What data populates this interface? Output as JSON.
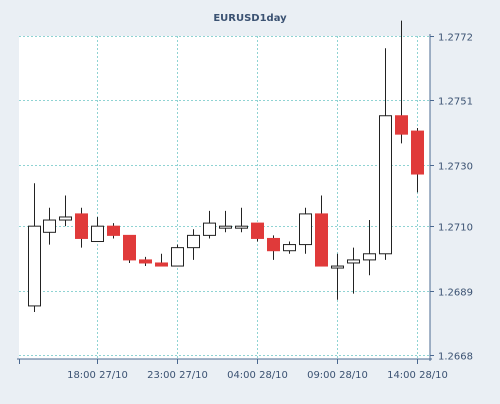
{
  "chart_data": {
    "type": "candlestick",
    "title": "EURUSD1day",
    "y_ticks": [
      1.2668,
      1.2689,
      1.271,
      1.273,
      1.2751,
      1.2772
    ],
    "ylim": [
      1.2668,
      1.2772
    ],
    "x_ticks": [
      {
        "label": "18:00 27/10",
        "index": 4
      },
      {
        "label": "23:00 27/10",
        "index": 9
      },
      {
        "label": "04:00 28/10",
        "index": 14
      },
      {
        "label": "09:00 28/10",
        "index": 19
      },
      {
        "label": "14:00 28/10",
        "index": 24
      }
    ],
    "candles": [
      {
        "open": 1.2684,
        "high": 1.2724,
        "low": 1.2682,
        "close": 1.271
      },
      {
        "open": 1.2708,
        "high": 1.2716,
        "low": 1.2704,
        "close": 1.2712
      },
      {
        "open": 1.2712,
        "high": 1.272,
        "low": 1.271,
        "close": 1.2713
      },
      {
        "open": 1.2714,
        "high": 1.2716,
        "low": 1.2703,
        "close": 1.2706
      },
      {
        "open": 1.2705,
        "high": 1.2713,
        "low": 1.2705,
        "close": 1.271
      },
      {
        "open": 1.271,
        "high": 1.2711,
        "low": 1.2706,
        "close": 1.2707
      },
      {
        "open": 1.2707,
        "high": 1.2707,
        "low": 1.2698,
        "close": 1.2699
      },
      {
        "open": 1.2699,
        "high": 1.27,
        "low": 1.2697,
        "close": 1.2698
      },
      {
        "open": 1.2698,
        "high": 1.2701,
        "low": 1.2697,
        "close": 1.2697
      },
      {
        "open": 1.2697,
        "high": 1.2704,
        "low": 1.2697,
        "close": 1.2703
      },
      {
        "open": 1.2703,
        "high": 1.2709,
        "low": 1.2699,
        "close": 1.2707
      },
      {
        "open": 1.2707,
        "high": 1.2715,
        "low": 1.2706,
        "close": 1.2711
      },
      {
        "open": 1.271,
        "high": 1.2715,
        "low": 1.2708,
        "close": 1.271
      },
      {
        "open": 1.271,
        "high": 1.2716,
        "low": 1.2708,
        "close": 1.271
      },
      {
        "open": 1.2711,
        "high": 1.2711,
        "low": 1.2705,
        "close": 1.2706
      },
      {
        "open": 1.2706,
        "high": 1.2707,
        "low": 1.2699,
        "close": 1.2702
      },
      {
        "open": 1.2702,
        "high": 1.2705,
        "low": 1.2701,
        "close": 1.2704
      },
      {
        "open": 1.2704,
        "high": 1.2716,
        "low": 1.2701,
        "close": 1.2714
      },
      {
        "open": 1.2714,
        "high": 1.272,
        "low": 1.2697,
        "close": 1.2697
      },
      {
        "open": 1.2697,
        "high": 1.2701,
        "low": 1.2686,
        "close": 1.2697
      },
      {
        "open": 1.2698,
        "high": 1.2703,
        "low": 1.2688,
        "close": 1.2699
      },
      {
        "open": 1.2699,
        "high": 1.2712,
        "low": 1.2694,
        "close": 1.2701
      },
      {
        "open": 1.2701,
        "high": 1.2768,
        "low": 1.2699,
        "close": 1.2746
      },
      {
        "open": 1.2746,
        "high": 1.2777,
        "low": 1.2737,
        "close": 1.274
      },
      {
        "open": 1.2741,
        "high": 1.2742,
        "low": 1.2721,
        "close": 1.2727
      }
    ],
    "colors": {
      "up_fill": "#ffffff",
      "down_fill": "#e03a3a",
      "candle_outline": "#222222",
      "grid": "#8fd3d3",
      "axis": "#4a6890",
      "text": "#3b5272",
      "plot_background": "#ffffff",
      "page_background": "#eaeff4"
    }
  }
}
